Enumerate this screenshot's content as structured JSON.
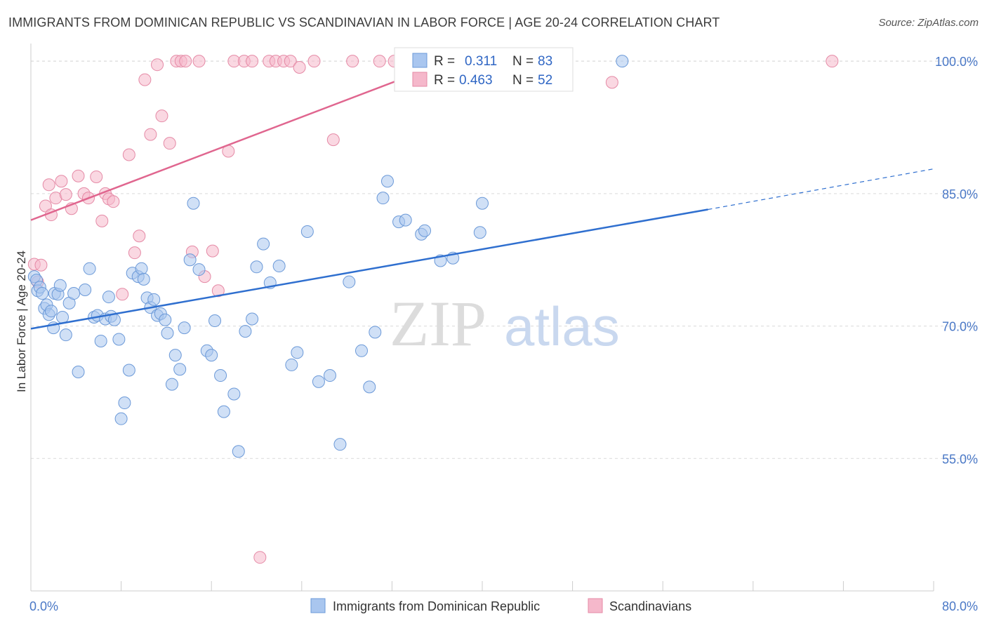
{
  "title": "IMMIGRANTS FROM DOMINICAN REPUBLIC VS SCANDINAVIAN IN LABOR FORCE | AGE 20-24 CORRELATION CHART",
  "source": "Source: ZipAtlas.com",
  "watermark": {
    "zip": "ZIP",
    "atlas": "atlas"
  },
  "colors": {
    "blue_fill": "#a9c6ef",
    "blue_stroke": "#6b99d8",
    "blue_line": "#2f6fcf",
    "pink_fill": "#f5b8cb",
    "pink_stroke": "#e58aa6",
    "pink_line": "#e0668f",
    "grid": "#d9d9d9",
    "tick_text": "#4a78c6"
  },
  "legend": {
    "rows": [
      {
        "r_label": "R =",
        "r_value": "0.311",
        "n_label": "N =",
        "n_value": "83"
      },
      {
        "r_label": "R =",
        "r_value": "0.463",
        "n_label": "N =",
        "n_value": "52"
      }
    ]
  },
  "bottom_legend": [
    "Immigrants from Dominican Republic",
    "Scandinavians"
  ],
  "chart_data": {
    "type": "scatter",
    "title": "IMMIGRANTS FROM DOMINICAN REPUBLIC VS SCANDINAVIAN IN LABOR FORCE | AGE 20-24 CORRELATION CHART",
    "xlabel": "",
    "ylabel": "In Labor Force | Age 20-24",
    "xlim": [
      0,
      80
    ],
    "ylim": [
      40,
      102
    ],
    "x_tick_labels": [
      "0.0%",
      "80.0%"
    ],
    "y_ticks": [
      55,
      70,
      85,
      100
    ],
    "y_tick_labels": [
      "55.0%",
      "70.0%",
      "85.0%",
      "100.0%"
    ],
    "series": [
      {
        "name": "Immigrants from Dominican Republic",
        "color": "blue",
        "points": [
          [
            0.3,
            75.6
          ],
          [
            0.5,
            75.2
          ],
          [
            0.6,
            74.0
          ],
          [
            0.8,
            74.4
          ],
          [
            1.0,
            73.7
          ],
          [
            1.2,
            72.0
          ],
          [
            1.4,
            72.4
          ],
          [
            1.6,
            71.3
          ],
          [
            1.8,
            71.7
          ],
          [
            2.0,
            69.8
          ],
          [
            2.1,
            73.7
          ],
          [
            2.4,
            73.6
          ],
          [
            2.6,
            74.6
          ],
          [
            2.8,
            71.0
          ],
          [
            3.1,
            69.0
          ],
          [
            3.4,
            72.6
          ],
          [
            3.8,
            73.7
          ],
          [
            4.2,
            64.8
          ],
          [
            4.8,
            74.1
          ],
          [
            5.2,
            76.5
          ],
          [
            5.6,
            71.0
          ],
          [
            5.9,
            71.2
          ],
          [
            6.2,
            68.3
          ],
          [
            6.6,
            70.8
          ],
          [
            6.9,
            73.3
          ],
          [
            7.1,
            71.1
          ],
          [
            7.4,
            70.7
          ],
          [
            7.8,
            68.5
          ],
          [
            8.0,
            59.5
          ],
          [
            8.3,
            61.3
          ],
          [
            8.7,
            65.0
          ],
          [
            9.0,
            76.0
          ],
          [
            9.5,
            75.6
          ],
          [
            9.8,
            76.5
          ],
          [
            10.0,
            75.3
          ],
          [
            10.3,
            73.2
          ],
          [
            10.6,
            72.1
          ],
          [
            10.9,
            73.0
          ],
          [
            11.2,
            71.2
          ],
          [
            11.5,
            71.4
          ],
          [
            11.9,
            70.7
          ],
          [
            12.1,
            69.2
          ],
          [
            12.5,
            63.4
          ],
          [
            12.8,
            66.7
          ],
          [
            13.2,
            65.1
          ],
          [
            13.6,
            69.8
          ],
          [
            14.1,
            77.5
          ],
          [
            14.4,
            83.9
          ],
          [
            14.9,
            76.4
          ],
          [
            15.6,
            67.2
          ],
          [
            16.0,
            66.7
          ],
          [
            16.3,
            70.6
          ],
          [
            16.8,
            64.4
          ],
          [
            17.1,
            60.3
          ],
          [
            18.0,
            62.3
          ],
          [
            18.4,
            55.8
          ],
          [
            19.0,
            69.4
          ],
          [
            19.6,
            70.8
          ],
          [
            20.0,
            76.7
          ],
          [
            20.6,
            79.3
          ],
          [
            21.2,
            74.9
          ],
          [
            22.0,
            76.8
          ],
          [
            23.1,
            65.6
          ],
          [
            23.6,
            67.0
          ],
          [
            24.5,
            80.7
          ],
          [
            25.5,
            63.7
          ],
          [
            26.5,
            64.4
          ],
          [
            27.4,
            56.6
          ],
          [
            28.2,
            75.0
          ],
          [
            29.3,
            67.2
          ],
          [
            30.0,
            63.1
          ],
          [
            30.5,
            69.3
          ],
          [
            31.2,
            84.5
          ],
          [
            31.6,
            86.4
          ],
          [
            32.6,
            81.8
          ],
          [
            33.2,
            82.0
          ],
          [
            34.6,
            80.4
          ],
          [
            34.9,
            80.8
          ],
          [
            36.3,
            77.4
          ],
          [
            37.4,
            77.7
          ],
          [
            39.8,
            80.6
          ],
          [
            40.0,
            83.9
          ],
          [
            52.4,
            100.0
          ]
        ]
      },
      {
        "name": "Scandinavians",
        "color": "pink",
        "points": [
          [
            0.3,
            77.0
          ],
          [
            0.6,
            75.0
          ],
          [
            0.9,
            76.9
          ],
          [
            1.3,
            83.6
          ],
          [
            1.6,
            86.0
          ],
          [
            1.8,
            82.6
          ],
          [
            2.2,
            84.5
          ],
          [
            2.7,
            86.4
          ],
          [
            3.1,
            84.9
          ],
          [
            3.6,
            83.3
          ],
          [
            4.2,
            87.0
          ],
          [
            4.7,
            85.0
          ],
          [
            5.1,
            84.5
          ],
          [
            5.8,
            86.9
          ],
          [
            6.3,
            81.9
          ],
          [
            6.6,
            85.0
          ],
          [
            6.9,
            84.4
          ],
          [
            7.3,
            84.1
          ],
          [
            8.1,
            73.6
          ],
          [
            8.7,
            89.4
          ],
          [
            9.2,
            78.3
          ],
          [
            9.6,
            80.2
          ],
          [
            10.1,
            97.9
          ],
          [
            10.6,
            91.7
          ],
          [
            11.2,
            99.6
          ],
          [
            11.6,
            93.8
          ],
          [
            12.3,
            90.7
          ],
          [
            12.9,
            100.0
          ],
          [
            13.3,
            100.0
          ],
          [
            13.7,
            100.0
          ],
          [
            14.3,
            78.4
          ],
          [
            14.9,
            100.0
          ],
          [
            15.4,
            75.6
          ],
          [
            16.1,
            78.5
          ],
          [
            16.6,
            74.0
          ],
          [
            17.5,
            89.8
          ],
          [
            18.0,
            100.0
          ],
          [
            18.9,
            100.0
          ],
          [
            19.6,
            100.0
          ],
          [
            20.3,
            43.8
          ],
          [
            21.1,
            100.0
          ],
          [
            21.7,
            100.0
          ],
          [
            22.4,
            100.0
          ],
          [
            23.0,
            100.0
          ],
          [
            23.8,
            99.3
          ],
          [
            25.1,
            100.0
          ],
          [
            26.8,
            91.1
          ],
          [
            28.5,
            100.0
          ],
          [
            30.9,
            100.0
          ],
          [
            32.2,
            100.0
          ],
          [
            51.5,
            97.6
          ],
          [
            71.0,
            100.0
          ]
        ]
      }
    ],
    "trend_lines": [
      {
        "series": "Immigrants from Dominican Republic",
        "x": [
          0,
          60
        ],
        "y": [
          69.7,
          83.2
        ],
        "dashed_extension_to_x": 80,
        "dashed_y_end": 87.8
      },
      {
        "series": "Scandinavians",
        "x": [
          0,
          37
        ],
        "y": [
          82.0,
          100.0
        ]
      }
    ]
  }
}
